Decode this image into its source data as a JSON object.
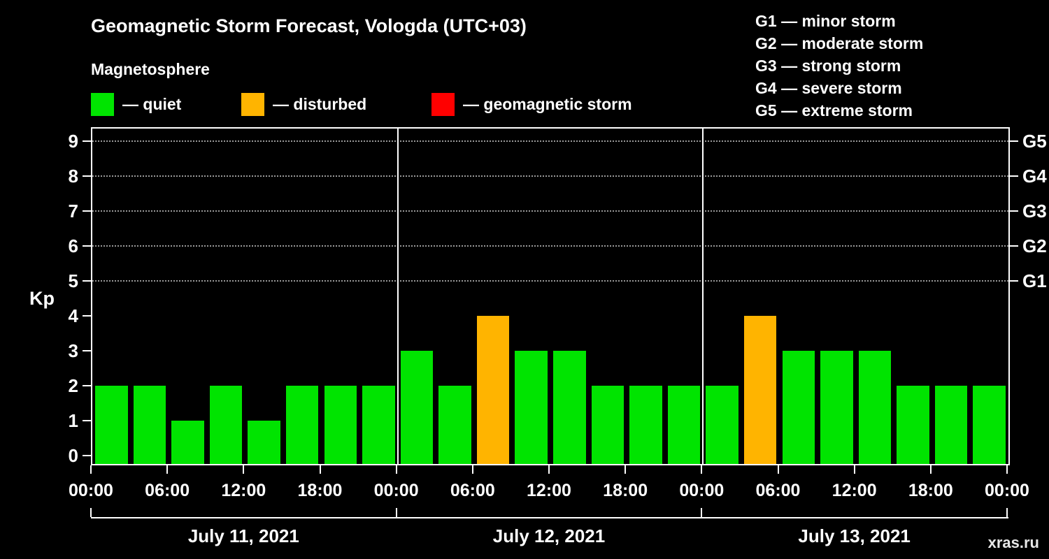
{
  "title": "Geomagnetic Storm Forecast, Vologda (UTC+03)",
  "subtitle": "Magnetosphere",
  "legend": {
    "quiet": {
      "label": "— quiet",
      "color": "#00e400"
    },
    "disturbed": {
      "label": "— disturbed",
      "color": "#ffb400"
    },
    "storm": {
      "label": "— geomagnetic storm",
      "color": "#ff0000"
    }
  },
  "g_legend": [
    "G1 — minor storm",
    "G2 — moderate storm",
    "G3 — strong storm",
    "G4 — severe storm",
    "G5 — extreme storm"
  ],
  "watermark": "xras.ru",
  "chart_data": {
    "type": "bar",
    "title": "Geomagnetic Storm Forecast, Vologda (UTC+03)",
    "ylabel": "Kp",
    "ylim": [
      0,
      9.36
    ],
    "yticks": [
      0,
      1,
      2,
      3,
      4,
      5,
      6,
      7,
      8,
      9
    ],
    "grid": "dotted horizontal lines at Kp 5,6,7,8,9",
    "legend_position": "top",
    "right_axis": [
      {
        "label": "G1",
        "value": 5
      },
      {
        "label": "G2",
        "value": 6
      },
      {
        "label": "G3",
        "value": 7
      },
      {
        "label": "G4",
        "value": 8
      },
      {
        "label": "G5",
        "value": 9
      }
    ],
    "bar_color_rule": {
      "quiet_max_kp": 3,
      "disturbed_kp": 4,
      "storm_min_kp": 5
    },
    "interval_hours": 3,
    "days": [
      {
        "date": "July 11, 2021",
        "values": [
          2,
          2,
          1,
          2,
          1,
          2,
          2,
          2
        ]
      },
      {
        "date": "July 12, 2021",
        "values": [
          3,
          2,
          4,
          3,
          3,
          2,
          2,
          2
        ]
      },
      {
        "date": "July 13, 2021",
        "values": [
          2,
          4,
          3,
          3,
          3,
          2,
          2,
          2
        ]
      }
    ],
    "x_tick_labels": [
      "00:00",
      "06:00",
      "12:00",
      "18:00",
      "00:00",
      "06:00",
      "12:00",
      "18:00",
      "00:00",
      "06:00",
      "12:00",
      "18:00",
      "00:00"
    ]
  }
}
